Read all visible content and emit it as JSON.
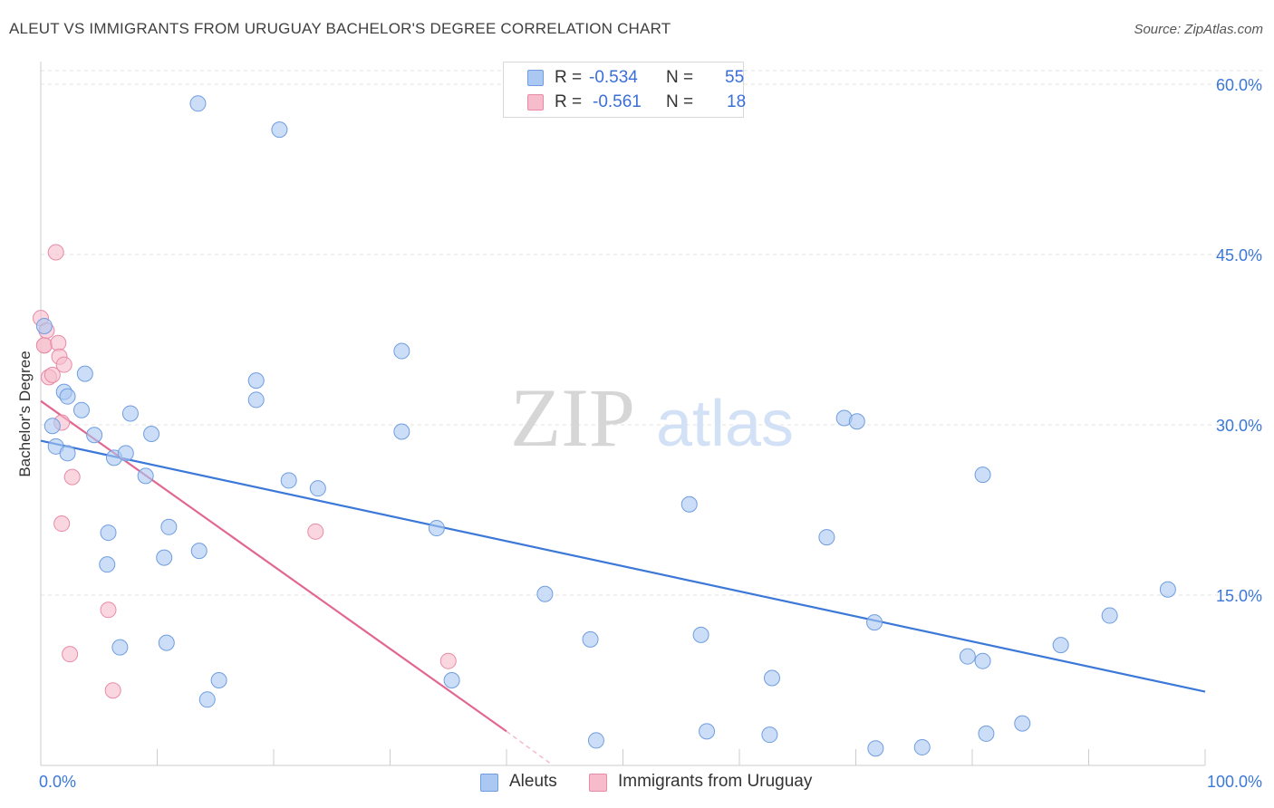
{
  "title": "ALEUT VS IMMIGRANTS FROM URUGUAY BACHELOR'S DEGREE CORRELATION CHART",
  "source": "Source: ZipAtlas.com",
  "watermark": {
    "zip": "ZIP",
    "atlas": "atlas"
  },
  "legend": {
    "r_label": "R =",
    "n_label": "N =",
    "series": [
      {
        "r": "-0.534",
        "n": "55",
        "fill": "#aac8f2",
        "stroke": "#6f9de0"
      },
      {
        "r": "-0.561",
        "n": "18",
        "fill": "#f6bccb",
        "stroke": "#e88aa6"
      }
    ]
  },
  "bottom_legend": [
    "Aleuts",
    "Immigrants from Uruguay"
  ],
  "chart_data": {
    "type": "scatter",
    "title": "ALEUT VS IMMIGRANTS FROM URUGUAY BACHELOR'S DEGREE CORRELATION CHART",
    "xlabel": "",
    "ylabel": "Bachelor's Degree",
    "xlim": [
      0,
      100
    ],
    "ylim": [
      0,
      60
    ],
    "x_tick_labels": {
      "left": "0.0%",
      "right": "100.0%"
    },
    "y_ticks": [
      15,
      30,
      45,
      60
    ],
    "y_tick_labels": [
      "15.0%",
      "30.0%",
      "45.0%",
      "60.0%"
    ],
    "grid": true,
    "series": [
      {
        "name": "Aleuts",
        "color": "#3b78d8",
        "fill": "#aac8f2",
        "points": [
          [
            13.5,
            58.3
          ],
          [
            20.5,
            56.0
          ],
          [
            0.3,
            38.7
          ],
          [
            1.0,
            29.9
          ],
          [
            1.3,
            28.1
          ],
          [
            2.0,
            32.9
          ],
          [
            2.3,
            27.5
          ],
          [
            2.3,
            32.5
          ],
          [
            3.5,
            31.3
          ],
          [
            3.8,
            34.5
          ],
          [
            4.6,
            29.1
          ],
          [
            6.3,
            27.1
          ],
          [
            7.3,
            27.5
          ],
          [
            7.7,
            31.0
          ],
          [
            9.0,
            25.5
          ],
          [
            9.5,
            29.2
          ],
          [
            5.7,
            17.7
          ],
          [
            5.8,
            20.5
          ],
          [
            10.6,
            18.3
          ],
          [
            11.0,
            21.0
          ],
          [
            13.6,
            18.9
          ],
          [
            10.8,
            10.8
          ],
          [
            6.8,
            10.4
          ],
          [
            15.3,
            7.5
          ],
          [
            14.3,
            5.8
          ],
          [
            18.5,
            33.9
          ],
          [
            18.5,
            32.2
          ],
          [
            21.3,
            25.1
          ],
          [
            23.8,
            24.4
          ],
          [
            31.0,
            29.4
          ],
          [
            31.0,
            36.5
          ],
          [
            34.0,
            20.9
          ],
          [
            35.3,
            7.5
          ],
          [
            43.3,
            15.1
          ],
          [
            47.2,
            11.1
          ],
          [
            47.7,
            2.2
          ],
          [
            55.7,
            23.0
          ],
          [
            56.7,
            11.5
          ],
          [
            57.2,
            3.0
          ],
          [
            62.8,
            7.7
          ],
          [
            62.6,
            2.7
          ],
          [
            67.5,
            20.1
          ],
          [
            69.0,
            30.6
          ],
          [
            70.1,
            30.3
          ],
          [
            71.6,
            12.6
          ],
          [
            71.7,
            1.5
          ],
          [
            75.7,
            1.6
          ],
          [
            79.6,
            9.6
          ],
          [
            80.9,
            9.2
          ],
          [
            80.9,
            25.6
          ],
          [
            81.2,
            2.8
          ],
          [
            84.3,
            3.7
          ],
          [
            87.6,
            10.6
          ],
          [
            91.8,
            13.2
          ],
          [
            96.8,
            15.5
          ]
        ],
        "trend": {
          "x": [
            0,
            100
          ],
          "y": [
            28.6,
            6.5
          ]
        }
      },
      {
        "name": "Immigrants from Uruguay",
        "color": "#e2678f",
        "fill": "#f6bccb",
        "points": [
          [
            0.0,
            39.4
          ],
          [
            0.3,
            37.0
          ],
          [
            0.3,
            37.0
          ],
          [
            1.3,
            45.2
          ],
          [
            1.5,
            37.2
          ],
          [
            1.6,
            36.0
          ],
          [
            2.0,
            35.3
          ],
          [
            0.7,
            34.2
          ],
          [
            1.0,
            34.4
          ],
          [
            1.8,
            30.2
          ],
          [
            2.7,
            25.4
          ],
          [
            1.8,
            21.3
          ],
          [
            23.6,
            20.6
          ],
          [
            5.8,
            13.7
          ],
          [
            2.5,
            9.8
          ],
          [
            6.2,
            6.6
          ],
          [
            35.0,
            9.2
          ],
          [
            0.5,
            38.3
          ]
        ],
        "trend": {
          "x": [
            0,
            40
          ],
          "y": [
            32.1,
            3.0
          ]
        },
        "trend_dashed": {
          "x": [
            40,
            44
          ],
          "y": [
            3.0,
            0.0
          ]
        }
      }
    ]
  }
}
